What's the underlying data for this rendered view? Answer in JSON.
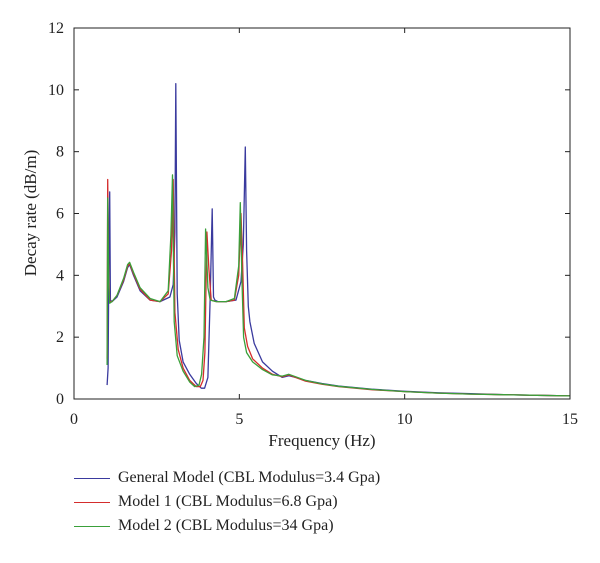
{
  "chart_data": {
    "type": "line",
    "title": "",
    "xlabel": "Frequency (Hz)",
    "ylabel": "Decay rate (dB/m)",
    "xlim": [
      0,
      15
    ],
    "ylim": [
      0,
      12
    ],
    "xticks": [
      0,
      5,
      10,
      15
    ],
    "yticks": [
      0,
      2,
      4,
      6,
      8,
      10,
      12
    ],
    "grid": false,
    "legend_position": "bottom-outside",
    "series": [
      {
        "name": "General Model (CBL Modulus=3.4 Gpa)",
        "color": "#3a3a9e",
        "x": [
          1.0,
          1.03,
          1.06,
          1.08,
          1.1,
          1.15,
          1.3,
          1.5,
          1.62,
          1.68,
          1.8,
          2.0,
          2.3,
          2.6,
          2.9,
          3.0,
          3.05,
          3.08,
          3.12,
          3.18,
          3.3,
          3.5,
          3.7,
          3.85,
          3.95,
          4.05,
          4.12,
          4.18,
          4.22,
          4.26,
          4.35,
          4.6,
          4.9,
          5.05,
          5.12,
          5.18,
          5.22,
          5.27,
          5.32,
          5.45,
          5.7,
          6.0,
          6.3,
          6.5,
          6.7,
          7.0,
          7.5,
          8.0,
          9.0,
          10.0,
          11.0,
          12.0,
          13.0,
          14.0,
          15.0
        ],
        "y": [
          0.45,
          1.0,
          5.5,
          6.7,
          3.2,
          3.15,
          3.3,
          3.8,
          4.25,
          4.35,
          4.0,
          3.5,
          3.2,
          3.15,
          3.3,
          3.7,
          5.4,
          10.2,
          3.4,
          1.9,
          1.2,
          0.8,
          0.5,
          0.35,
          0.35,
          0.7,
          3.3,
          6.15,
          3.3,
          3.2,
          3.15,
          3.15,
          3.2,
          3.8,
          5.0,
          8.15,
          4.8,
          3.0,
          2.5,
          1.8,
          1.2,
          0.9,
          0.7,
          0.75,
          0.7,
          0.6,
          0.5,
          0.42,
          0.32,
          0.25,
          0.2,
          0.17,
          0.14,
          0.12,
          0.1
        ]
      },
      {
        "name": "Model 1 (CBL Modulus=6.8 Gpa)",
        "color": "#d42d2d",
        "x": [
          1.0,
          1.02,
          1.05,
          1.08,
          1.15,
          1.3,
          1.5,
          1.62,
          1.68,
          1.8,
          2.0,
          2.3,
          2.6,
          2.85,
          2.95,
          3.0,
          3.05,
          3.15,
          3.3,
          3.5,
          3.7,
          3.82,
          3.9,
          3.96,
          4.02,
          4.08,
          4.15,
          4.3,
          4.6,
          4.85,
          4.98,
          5.05,
          5.1,
          5.15,
          5.25,
          5.4,
          5.7,
          6.0,
          6.3,
          6.5,
          6.7,
          7.0,
          7.5,
          8.0,
          9.0,
          10.0,
          11.0,
          12.0,
          13.0,
          14.0,
          15.0
        ],
        "y": [
          1.3,
          7.1,
          3.9,
          3.15,
          3.15,
          3.35,
          3.85,
          4.3,
          4.38,
          4.05,
          3.55,
          3.2,
          3.15,
          3.4,
          4.8,
          7.1,
          2.8,
          1.6,
          1.0,
          0.6,
          0.4,
          0.4,
          0.6,
          1.5,
          5.4,
          4.2,
          3.2,
          3.15,
          3.15,
          3.2,
          4.0,
          6.0,
          4.4,
          2.3,
          1.7,
          1.3,
          1.0,
          0.8,
          0.72,
          0.78,
          0.7,
          0.58,
          0.48,
          0.4,
          0.3,
          0.24,
          0.19,
          0.16,
          0.14,
          0.12,
          0.1
        ]
      },
      {
        "name": "Model 2 (CBL Modulus=34 Gpa)",
        "color": "#3aa03a",
        "x": [
          1.0,
          1.02,
          1.05,
          1.08,
          1.15,
          1.3,
          1.5,
          1.62,
          1.68,
          1.8,
          2.0,
          2.3,
          2.6,
          2.85,
          2.93,
          2.98,
          3.03,
          3.12,
          3.3,
          3.5,
          3.65,
          3.78,
          3.86,
          3.93,
          3.98,
          4.05,
          4.12,
          4.3,
          4.6,
          4.85,
          4.98,
          5.03,
          5.08,
          5.13,
          5.22,
          5.4,
          5.7,
          6.0,
          6.3,
          6.5,
          6.7,
          7.0,
          7.5,
          8.0,
          9.0,
          10.0,
          11.0,
          12.0,
          13.0,
          14.0,
          15.0
        ],
        "y": [
          1.1,
          6.5,
          3.7,
          3.1,
          3.15,
          3.35,
          3.9,
          4.35,
          4.42,
          4.1,
          3.6,
          3.25,
          3.15,
          3.5,
          5.3,
          7.25,
          2.5,
          1.4,
          0.9,
          0.55,
          0.4,
          0.45,
          0.8,
          2.0,
          5.5,
          3.6,
          3.2,
          3.15,
          3.15,
          3.25,
          4.3,
          6.35,
          3.8,
          2.0,
          1.5,
          1.2,
          0.95,
          0.78,
          0.74,
          0.8,
          0.72,
          0.6,
          0.49,
          0.41,
          0.31,
          0.24,
          0.19,
          0.16,
          0.14,
          0.12,
          0.1
        ]
      }
    ]
  }
}
